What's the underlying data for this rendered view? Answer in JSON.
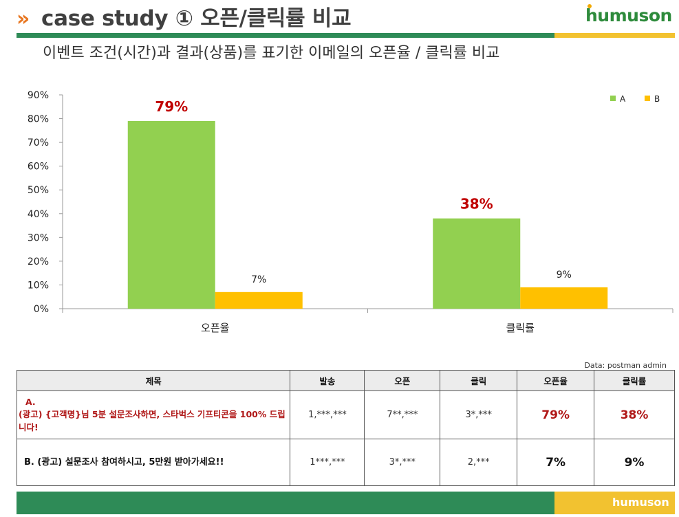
{
  "header": {
    "arrows": "»",
    "title": "case study ① 오픈/클릭률 비교",
    "logo_text": "humuson",
    "subtitle": "이벤트 조건(시간)과 결과(상품)를 표기한 이메일의 오픈율 / 클릭률 비교"
  },
  "colors": {
    "series_a": "#92d050",
    "series_b": "#ffc000",
    "highlight_label": "#c00000",
    "brand_green": "#2e8b57",
    "brand_yellow": "#f2c230"
  },
  "chart_data": {
    "type": "bar",
    "categories": [
      "오픈율",
      "클릭률"
    ],
    "series": [
      {
        "name": "A",
        "values": [
          79,
          38
        ],
        "labels": [
          "79%",
          "38%"
        ]
      },
      {
        "name": "B",
        "values": [
          7,
          9
        ],
        "labels": [
          "7%",
          "9%"
        ]
      }
    ],
    "y_ticks": [
      "0%",
      "10%",
      "20%",
      "30%",
      "40%",
      "50%",
      "60%",
      "70%",
      "80%",
      "90%"
    ],
    "ylim": [
      0,
      90
    ],
    "legend_position": "top-right",
    "grid": false
  },
  "source_note": "Data: postman admin",
  "table": {
    "headers": [
      "제목",
      "발송",
      "오픈",
      "클릭",
      "오픈율",
      "클릭률"
    ],
    "rows": [
      {
        "title_lead": "A.",
        "title_body": "(광고) {고객명}님 5분 설문조사하면, 스타벅스 기프티콘을 100% 드립니다!",
        "sent": "1,***,***",
        "open": "7**,***",
        "click": "3*,***",
        "open_rate": "79%",
        "click_rate": "38%"
      },
      {
        "title_lead": "B.",
        "title_body": "(광고) 설문조사 참여하시고, 5만원 받아가세요!!",
        "sent": "1***,***",
        "open": "3*,***",
        "click": "2,***",
        "open_rate": "7%",
        "click_rate": "9%"
      }
    ]
  },
  "footer": {
    "logo_text": "humuson"
  }
}
